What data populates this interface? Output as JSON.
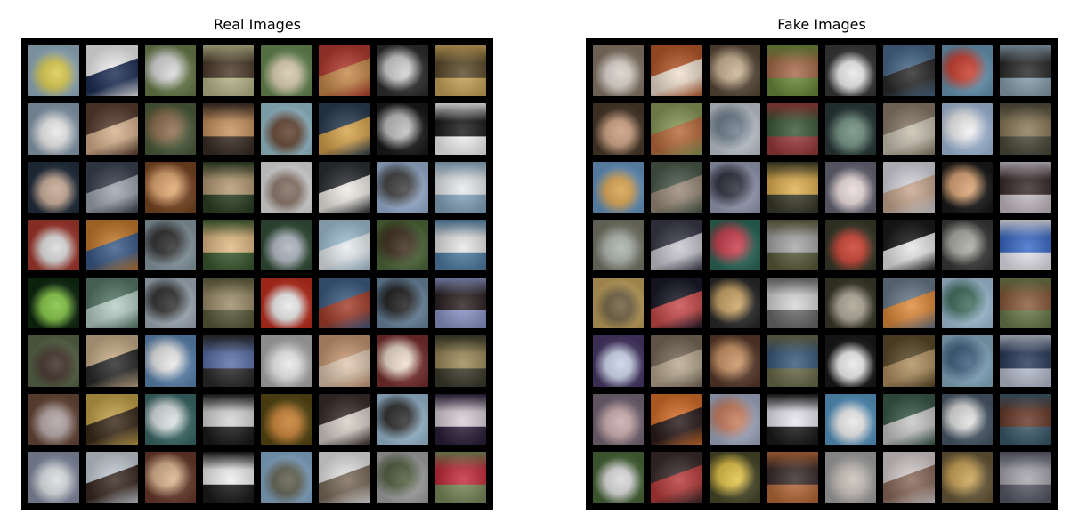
{
  "panels": {
    "real": {
      "title": "Real Images",
      "tiles": [
        [
          "#9bb7c7",
          "#d9c947"
        ],
        [
          "#f4f4f4",
          "#1e2f56"
        ],
        [
          "#6a7f4b",
          "#d7d7d7"
        ],
        [
          "#b8b88b",
          "#4b3a2a"
        ],
        [
          "#6b8d56",
          "#d4c7aa"
        ],
        [
          "#b43b2f",
          "#c78a4a"
        ],
        [
          "#2e2e2e",
          "#cfcfcf"
        ],
        [
          "#c9a55a",
          "#5a4a2a"
        ],
        [
          "#8fa3b5",
          "#e7e7e7"
        ],
        [
          "#5a3e30",
          "#d7b18c"
        ],
        [
          "#4c5e3c",
          "#8b6b4a"
        ],
        [
          "#3a2c23",
          "#c8935f"
        ],
        [
          "#9cc5d4",
          "#5c3d2a"
        ],
        [
          "#2a3e52",
          "#d7a34a"
        ],
        [
          "#1a1a1a",
          "#bdbdbd"
        ],
        [
          "#f7f7f7",
          "#1b1b1b"
        ],
        [
          "#243040",
          "#c3a58f"
        ],
        [
          "#3a4250",
          "#9ea6b0"
        ],
        [
          "#7a4622",
          "#e0a46d"
        ],
        [
          "#2b3f23",
          "#b59a74"
        ],
        [
          "#e9e9e9",
          "#7f6a5e"
        ],
        [
          "#2d3034",
          "#f0ece6"
        ],
        [
          "#9fb7d8",
          "#3c3c3c"
        ],
        [
          "#87a7c0",
          "#e9ecef"
        ],
        [
          "#a93a2f",
          "#d9d9d9"
        ],
        [
          "#c77c2d",
          "#3a5a88"
        ],
        [
          "#8c9ea8",
          "#2a2a2a"
        ],
        [
          "#3b5a2f",
          "#e1b983"
        ],
        [
          "#34513a",
          "#aab2bc"
        ],
        [
          "#a4c3d7",
          "#e7edf1"
        ],
        [
          "#4f6a3a",
          "#3a2a1a"
        ],
        [
          "#4f7da3",
          "#e8e8e8"
        ],
        [
          "#0f2a10",
          "#7bbf3a"
        ],
        [
          "#567a6a",
          "#b8d0c8"
        ],
        [
          "#a6b4c0",
          "#2b2b2b"
        ],
        [
          "#5a5a3a",
          "#9d8d6a"
        ],
        [
          "#c4311f",
          "#e8e8e8"
        ],
        [
          "#3d5d84",
          "#a33d2b"
        ],
        [
          "#6d8aa4",
          "#1b1b1b"
        ],
        [
          "#8c95c8",
          "#2a2020"
        ],
        [
          "#5a6a4a",
          "#3a2a22"
        ],
        [
          "#cbb08a",
          "#2a2a2a"
        ],
        [
          "#5d88b5",
          "#e8e8e8"
        ],
        [
          "#2a2a2a",
          "#5a6fa8"
        ],
        [
          "#b3b3b3",
          "#e8e8e8"
        ],
        [
          "#c99a74",
          "#e0c8b0"
        ],
        [
          "#7a2f2f",
          "#eedccc"
        ],
        [
          "#3a3a2a",
          "#9c8a5a"
        ],
        [
          "#6a4a3a",
          "#b0a0a0"
        ],
        [
          "#c6a44a",
          "#3a2a1a"
        ],
        [
          "#3a6a6a",
          "#d8e0e0"
        ],
        [
          "#1a1a1a",
          "#d8d8d8"
        ],
        [
          "#5a4a12",
          "#c47a2a"
        ],
        [
          "#3a2e2a",
          "#d8d0c8"
        ],
        [
          "#9fc0d8",
          "#2a2a2a"
        ],
        [
          "#2a1f3a",
          "#d8d0d8"
        ],
        [
          "#8892a8",
          "#d8dce0"
        ],
        [
          "#c8d0d8",
          "#3a2a22"
        ],
        [
          "#6a3a2a",
          "#d8b08a"
        ],
        [
          "#1a1a1a",
          "#f0f0f0"
        ],
        [
          "#8ab0d0",
          "#5a5a4a"
        ],
        [
          "#e8e8e8",
          "#7a6a5a"
        ],
        [
          "#a8a8a8",
          "#4a5a3a"
        ],
        [
          "#7a8a5a",
          "#c42a3a"
        ]
      ]
    },
    "fake": {
      "title": "Fake Images",
      "tiles": [
        [
          "#8a7a6a",
          "#d8d0c8"
        ],
        [
          "#b85a2a",
          "#f0e0d0"
        ],
        [
          "#5a4a3a",
          "#c8b090"
        ],
        [
          "#6a8a3a",
          "#a86a4a"
        ],
        [
          "#3a3a3a",
          "#e8e8e8"
        ],
        [
          "#4a6a8a",
          "#2a2a2a"
        ],
        [
          "#6a9ab8",
          "#c83a2a"
        ],
        [
          "#8aa0b0",
          "#2a2a2a"
        ],
        [
          "#4a3a2a",
          "#c89a7a"
        ],
        [
          "#8a9a5a",
          "#b86a3a"
        ],
        [
          "#c8d0d8",
          "#6a7a8a"
        ],
        [
          "#9a3a3a",
          "#3a5a3a"
        ],
        [
          "#2a3a3a",
          "#6a8a7a"
        ],
        [
          "#8a7a6a",
          "#c8c0b0"
        ],
        [
          "#a8c0e0",
          "#f0f0f0"
        ],
        [
          "#4a4a3a",
          "#8a7a5a"
        ],
        [
          "#6a9ac8",
          "#d8a04a"
        ],
        [
          "#4a5a4a",
          "#9a8a7a"
        ],
        [
          "#9aa0b8",
          "#2a2a3a"
        ],
        [
          "#3a3a2a",
          "#e0b050"
        ],
        [
          "#6a6a7a",
          "#e8d8d8"
        ],
        [
          "#d8d8e0",
          "#c8a890"
        ],
        [
          "#1a1a1a",
          "#d8a070"
        ],
        [
          "#c8c0c8",
          "#3a2a2a"
        ],
        [
          "#7a7a6a",
          "#a8b0a8"
        ],
        [
          "#3a3a4a",
          "#c8c8d0"
        ],
        [
          "#2a6a5a",
          "#c83a4a"
        ],
        [
          "#5a5a3a",
          "#a8a8a8"
        ],
        [
          "#3a3a2a",
          "#c83a2a"
        ],
        [
          "#1a1a1a",
          "#e8e8e8"
        ],
        [
          "#3a3a3a",
          "#a8a8a0"
        ],
        [
          "#e8e8f0",
          "#3a6ac8"
        ],
        [
          "#c8a860",
          "#6a5a3a"
        ],
        [
          "#1a1a2a",
          "#c84a4a"
        ],
        [
          "#2a2a2a",
          "#c8a060"
        ],
        [
          "#6a6a6a",
          "#d8d8d8"
        ],
        [
          "#3a3a2a",
          "#a8a090"
        ],
        [
          "#6a7a8a",
          "#e08a3a"
        ],
        [
          "#a8c8e0",
          "#3a6a5a"
        ],
        [
          "#6a7a4a",
          "#8a5a3a"
        ],
        [
          "#4a3a6a",
          "#c8d0e8"
        ],
        [
          "#7a6a5a",
          "#b8a890"
        ],
        [
          "#5a3a2a",
          "#c89060"
        ],
        [
          "#6a6a4a",
          "#3a5a7a"
        ],
        [
          "#1a1a1a",
          "#e8e8e8"
        ],
        [
          "#5a4a2a",
          "#b09060"
        ],
        [
          "#8ab0c8",
          "#3a5a7a"
        ],
        [
          "#b8c0d0",
          "#2a3a5a"
        ],
        [
          "#7a6a7a",
          "#c8a8a8"
        ],
        [
          "#d8702a",
          "#2a1a1a"
        ],
        [
          "#a8b0c8",
          "#c87a5a"
        ],
        [
          "#1a1a1a",
          "#e8e8f0"
        ],
        [
          "#5a9ac8",
          "#e8e8e8"
        ],
        [
          "#3a5a4a",
          "#c8c8c8"
        ],
        [
          "#4a5a6a",
          "#e0e0e0"
        ],
        [
          "#3a5a6a",
          "#6a3a2a"
        ],
        [
          "#4a6a3a",
          "#d8d8d8"
        ],
        [
          "#3a2a2a",
          "#b83a3a"
        ],
        [
          "#4a4a2a",
          "#e0c040"
        ],
        [
          "#b86a3a",
          "#3a2a2a"
        ],
        [
          "#a8a8a8",
          "#c8c0b8"
        ],
        [
          "#d8d0d0",
          "#8a6a5a"
        ],
        [
          "#6a5a3a",
          "#c8a050"
        ],
        [
          "#5a5a6a",
          "#a8a8b0"
        ]
      ]
    }
  }
}
